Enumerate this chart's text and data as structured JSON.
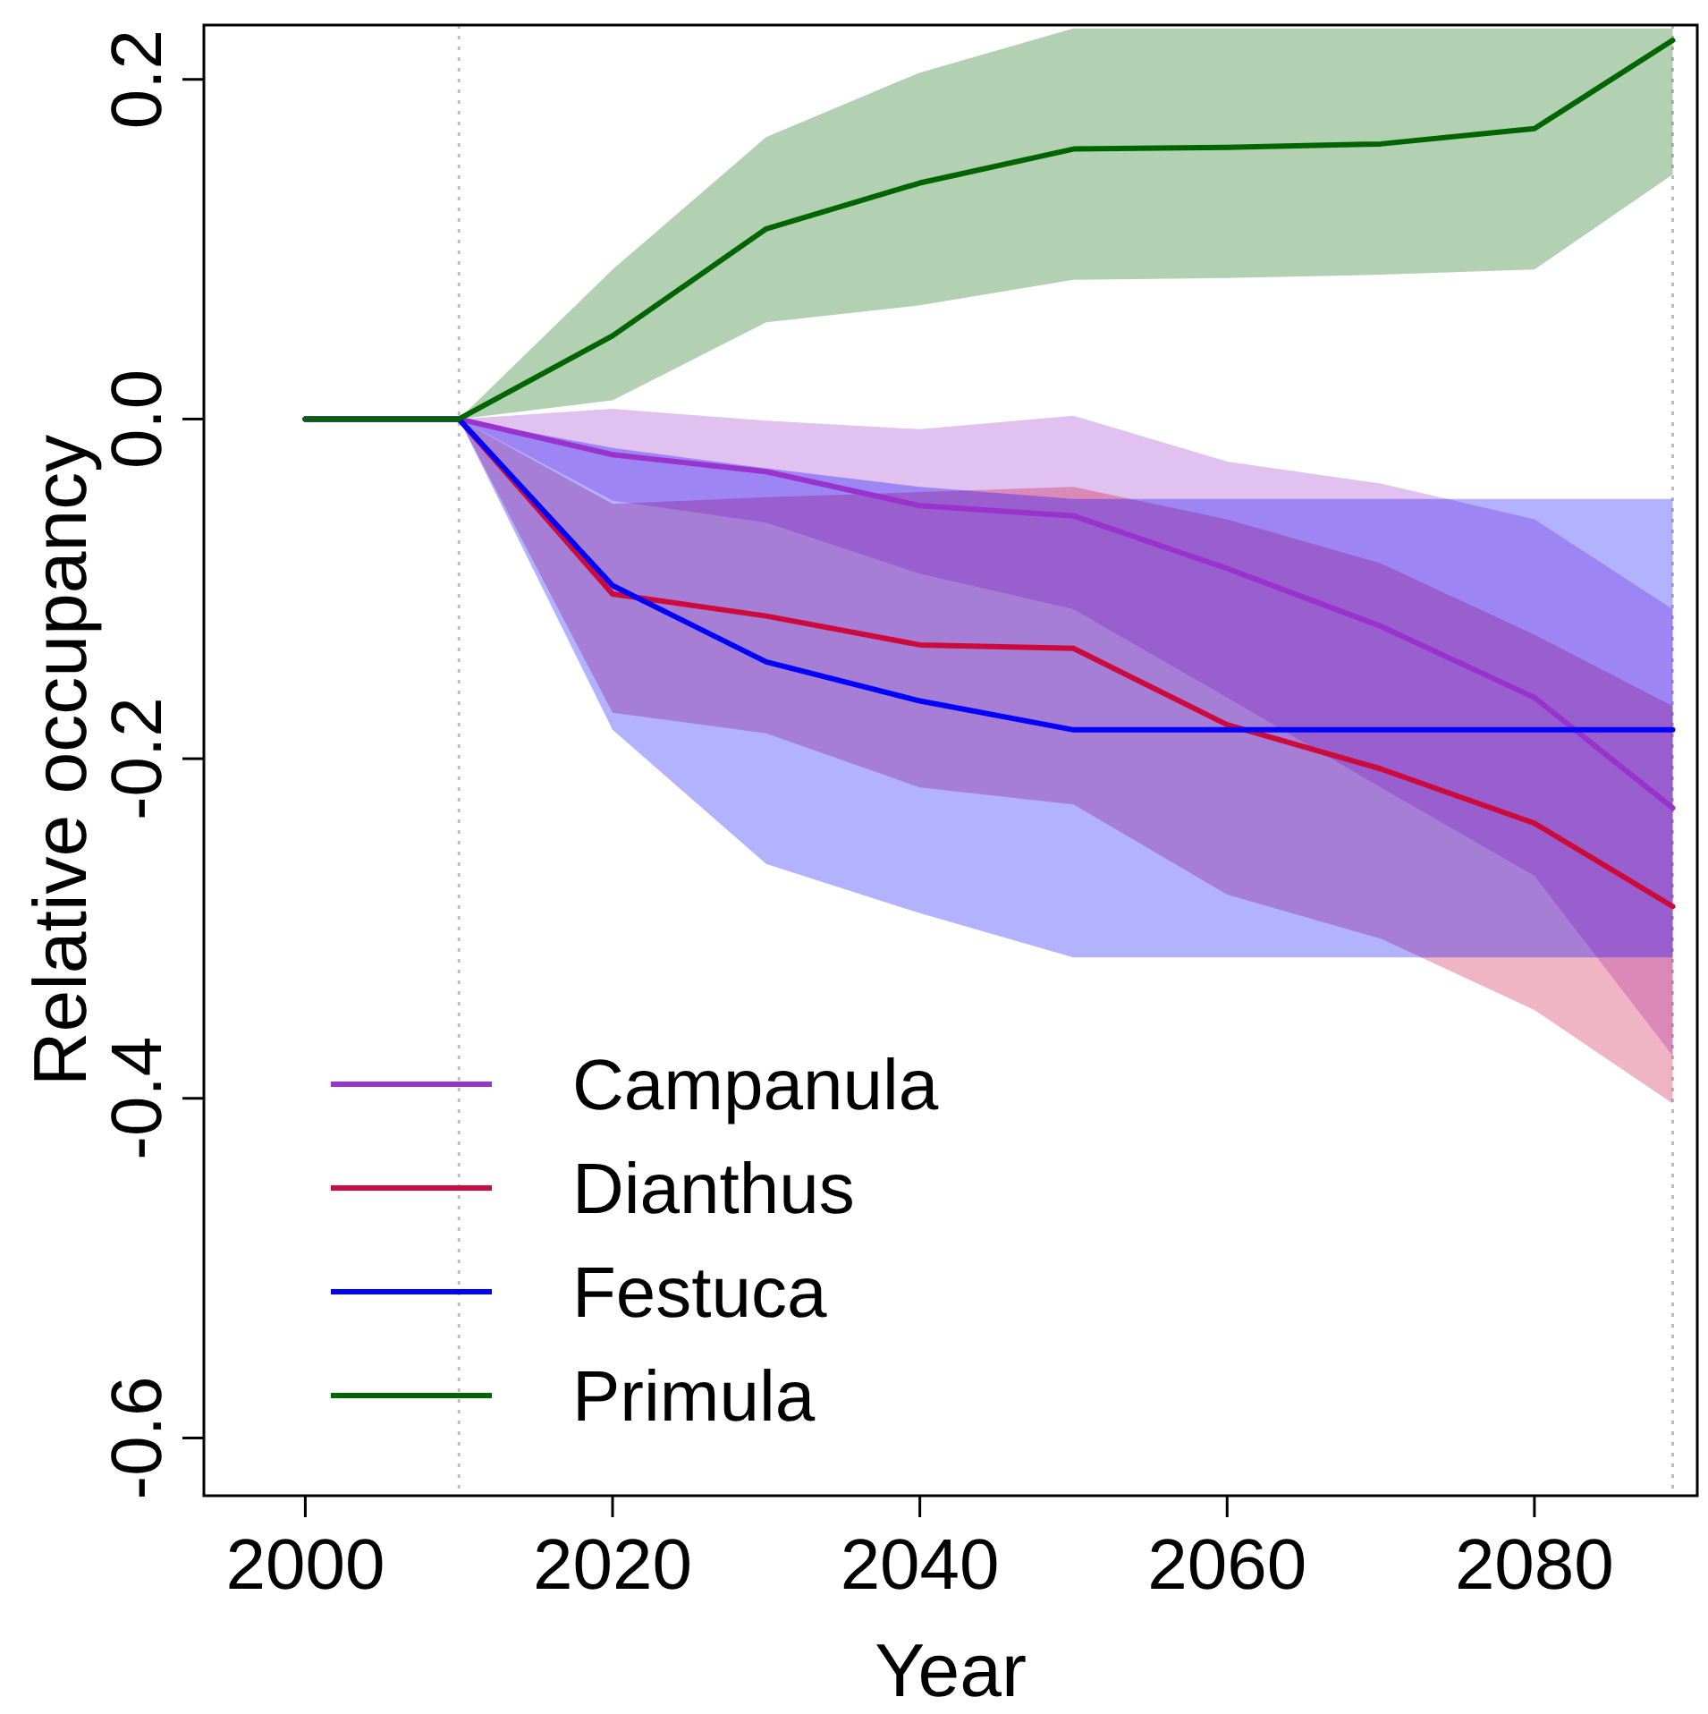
{
  "chart_data": {
    "type": "line",
    "xlabel": "Year",
    "ylabel": "Relative occupancy",
    "x": [
      2000,
      2010,
      2020,
      2030,
      2040,
      2050,
      2060,
      2070,
      2080,
      2089
    ],
    "xlim": [
      1993.4,
      2090.6
    ],
    "ylim": [
      -0.634,
      0.232
    ],
    "xticks": [
      2000,
      2020,
      2040,
      2060,
      2080
    ],
    "yticks": [
      {
        "value": -0.6,
        "label": "-0.6"
      },
      {
        "value": -0.4,
        "label": "-0.4"
      },
      {
        "value": -0.2,
        "label": "-0.2"
      },
      {
        "value": 0,
        "label": "0.0"
      },
      {
        "value": 0.2,
        "label": "0.2"
      }
    ],
    "grid": false,
    "legend": "bottom left",
    "line_style": "solid",
    "ref_lines": [
      {
        "axis": "x",
        "value": 2010,
        "color": "#bebebe",
        "line_style": "dotted"
      },
      {
        "axis": "x",
        "value": 2089,
        "color": "#bebebe",
        "line_style": "dotted"
      }
    ],
    "series": [
      {
        "name": "Campanula",
        "color": "#9a32cd",
        "values": [
          0,
          0,
          -0.021,
          -0.031,
          -0.051,
          -0.057,
          -0.088,
          -0.122,
          -0.164,
          -0.229
        ],
        "upper": [
          0,
          0,
          0.006,
          -0.001,
          -0.006,
          0.002,
          -0.025,
          -0.038,
          -0.059,
          -0.112
        ],
        "lower": [
          0,
          0,
          -0.048,
          -0.061,
          -0.091,
          -0.112,
          -0.164,
          -0.217,
          -0.269,
          -0.375
        ]
      },
      {
        "name": "Dianthus",
        "color": "#cd0a3c",
        "values": [
          0,
          0,
          -0.103,
          -0.116,
          -0.133,
          -0.135,
          -0.18,
          -0.206,
          -0.238,
          -0.287
        ],
        "upper": [
          0,
          0,
          -0.05,
          -0.046,
          -0.043,
          -0.04,
          -0.059,
          -0.085,
          -0.127,
          -0.169
        ],
        "lower": [
          0,
          0,
          -0.173,
          -0.185,
          -0.217,
          -0.227,
          -0.28,
          -0.306,
          -0.348,
          -0.403
        ]
      },
      {
        "name": "Festuca",
        "color": "#0000ff",
        "values": [
          0,
          0,
          -0.098,
          -0.143,
          -0.166,
          -0.183,
          -0.183,
          -0.183,
          -0.183,
          -0.183
        ],
        "upper": [
          0,
          0,
          -0.017,
          -0.029,
          -0.04,
          -0.047,
          -0.047,
          -0.047,
          -0.047,
          -0.047
        ],
        "lower": [
          0,
          0,
          -0.183,
          -0.262,
          -0.291,
          -0.317,
          -0.317,
          -0.317,
          -0.317,
          -0.317
        ]
      },
      {
        "name": "Primula",
        "color": "#006400",
        "values": [
          0,
          0,
          0.049,
          0.112,
          0.139,
          0.159,
          0.16,
          0.162,
          0.171,
          0.223
        ],
        "upper": [
          0,
          0,
          0.088,
          0.166,
          0.204,
          0.23,
          0.23,
          0.23,
          0.23,
          0.23
        ],
        "lower": [
          0,
          0,
          0.011,
          0.057,
          0.067,
          0.082,
          0.083,
          0.085,
          0.088,
          0.144
        ]
      }
    ]
  }
}
